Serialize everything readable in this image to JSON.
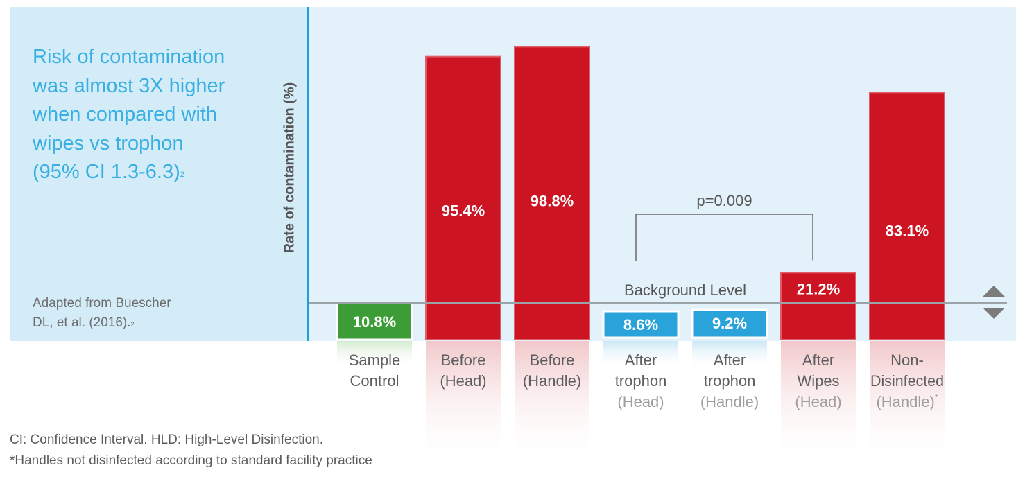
{
  "headline": {
    "line1": "Risk of contamination",
    "line2": "was almost 3X higher",
    "line3": "when compared with",
    "line4": "wipes vs trophon",
    "line5": "(95% CI 1.3-6.3)",
    "ref": "2"
  },
  "source": {
    "line1": "Adapted from Buescher",
    "line2": "DL, et al. (2016).",
    "ref": "2"
  },
  "footnotes": {
    "line1": "CI: Confidence Interval. HLD: High-Level Disinfection.",
    "line2": "*Handles not disinfected according to standard facility practice"
  },
  "colors": {
    "red": "#cc1423",
    "green": "#3c9c35",
    "blue": "#2aa3da",
    "panel": "#e2f1fa"
  },
  "chart_data": {
    "type": "bar",
    "title": "",
    "ylabel": "Rate of contamination (%)",
    "xlabel": "",
    "ylim": [
      0,
      100
    ],
    "background_level": 10.8,
    "background_label": "Background Level",
    "categories": [
      {
        "lines": [
          "Sample",
          "Control"
        ],
        "faded_from": 2
      },
      {
        "lines": [
          "Before",
          "(Head)"
        ],
        "faded_from": 2
      },
      {
        "lines": [
          "Before",
          "(Handle)"
        ],
        "faded_from": 2
      },
      {
        "lines": [
          "After",
          "trophon",
          "(Head)"
        ],
        "faded_from": 2
      },
      {
        "lines": [
          "After",
          "trophon",
          "(Handle)"
        ],
        "faded_from": 2
      },
      {
        "lines": [
          "After",
          "Wipes",
          "(Head)"
        ],
        "faded_from": 2
      },
      {
        "lines": [
          "Non-",
          "Disinfected",
          "(Handle)"
        ],
        "faded_from": 2,
        "marker": "*"
      }
    ],
    "values": [
      10.8,
      95.4,
      98.8,
      8.6,
      9.2,
      21.2,
      83.1
    ],
    "value_labels": [
      "10.8%",
      "95.4%",
      "98.8%",
      "8.6%",
      "9.2%",
      "21.2%",
      "83.1%"
    ],
    "bar_colors": [
      "green",
      "red",
      "red",
      "blue",
      "blue",
      "red",
      "red"
    ],
    "significance": {
      "from_index": 3,
      "to_index": 5,
      "label": "p=0.009"
    }
  }
}
